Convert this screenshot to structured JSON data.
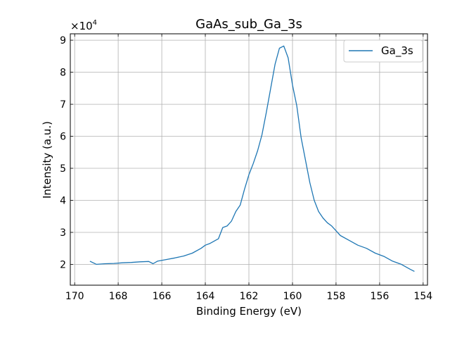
{
  "chart_data": {
    "type": "line",
    "title": "GaAs_sub_Ga_3s",
    "xlabel": "Binding Energy (eV)",
    "ylabel": "Intensity (a.u.)",
    "x_inverted": true,
    "xlim": [
      170.2,
      153.8
    ],
    "ylim": [
      13500,
      92000
    ],
    "y_multiplier": {
      "base": "×10",
      "exponent": "4"
    },
    "grid": true,
    "legend_position": "top-right",
    "x_ticks": [
      {
        "value": 170,
        "label": "170"
      },
      {
        "value": 168,
        "label": "168"
      },
      {
        "value": 166,
        "label": "166"
      },
      {
        "value": 164,
        "label": "164"
      },
      {
        "value": 162,
        "label": "162"
      },
      {
        "value": 160,
        "label": "160"
      },
      {
        "value": 158,
        "label": "158"
      },
      {
        "value": 156,
        "label": "156"
      },
      {
        "value": 154,
        "label": "154"
      }
    ],
    "y_ticks": [
      {
        "value": 20000,
        "label": "2"
      },
      {
        "value": 30000,
        "label": "3"
      },
      {
        "value": 40000,
        "label": "4"
      },
      {
        "value": 50000,
        "label": "5"
      },
      {
        "value": 60000,
        "label": "6"
      },
      {
        "value": 70000,
        "label": "7"
      },
      {
        "value": 80000,
        "label": "8"
      },
      {
        "value": 90000,
        "label": "9"
      }
    ],
    "series": [
      {
        "name": "Ga_3s",
        "color": "#1f77b4",
        "x": [
          169.3,
          169.0,
          168.6,
          168.2,
          167.8,
          167.4,
          167.0,
          166.6,
          166.4,
          166.2,
          165.8,
          165.4,
          165.0,
          164.6,
          164.2,
          164.0,
          163.8,
          163.4,
          163.2,
          163.0,
          162.8,
          162.6,
          162.4,
          162.2,
          162.0,
          161.8,
          161.6,
          161.4,
          161.2,
          161.0,
          160.8,
          160.6,
          160.4,
          160.2,
          160.0,
          159.8,
          159.6,
          159.4,
          159.2,
          159.0,
          158.8,
          158.6,
          158.4,
          158.2,
          158.0,
          157.8,
          157.4,
          157.0,
          156.6,
          156.2,
          155.8,
          155.4,
          155.0,
          154.6,
          154.4
        ],
        "y": [
          21000,
          20000,
          20200,
          20300,
          20500,
          20600,
          20800,
          20900,
          20200,
          21000,
          21500,
          22000,
          22600,
          23500,
          25000,
          26000,
          26500,
          28000,
          31500,
          32000,
          33500,
          36500,
          38500,
          43500,
          48000,
          51500,
          55500,
          60500,
          67500,
          75000,
          82500,
          87500,
          88200,
          84500,
          76000,
          69500,
          59500,
          52500,
          45500,
          40000,
          36500,
          34500,
          33000,
          32000,
          30500,
          29000,
          27500,
          26000,
          25000,
          23500,
          22500,
          21000,
          20000,
          18500,
          17800
        ]
      }
    ]
  }
}
